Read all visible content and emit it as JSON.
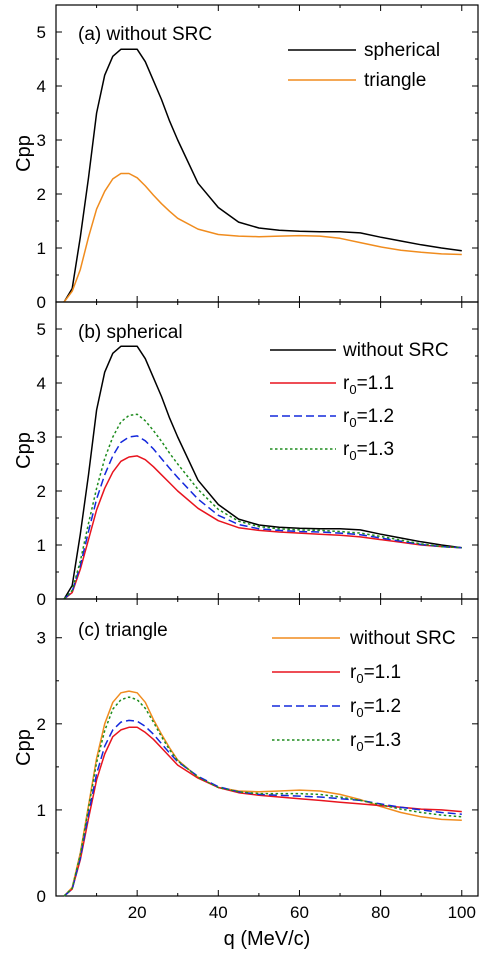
{
  "chart_data": [
    {
      "type": "line",
      "title": "(a) without SRC",
      "ylabel": "Cpp",
      "xlabel": "",
      "xlim": [
        0,
        104
      ],
      "ylim": [
        0,
        5.5
      ],
      "xticks": [
        20,
        40,
        60,
        80,
        100
      ],
      "yticks": [
        0,
        1,
        2,
        3,
        4,
        5
      ],
      "legend_position": "top-right",
      "series": [
        {
          "name": "spherical",
          "color": "#000000",
          "dash": "solid",
          "x": [
            2,
            4,
            6,
            8,
            10,
            12,
            14,
            16,
            18,
            20,
            22,
            24,
            26,
            28,
            30,
            35,
            40,
            45,
            50,
            55,
            60,
            65,
            70,
            75,
            80,
            85,
            90,
            95,
            100
          ],
          "y": [
            0,
            0.25,
            1.2,
            2.3,
            3.5,
            4.2,
            4.55,
            4.68,
            4.68,
            4.68,
            4.45,
            4.1,
            3.75,
            3.35,
            3.0,
            2.2,
            1.75,
            1.48,
            1.37,
            1.33,
            1.31,
            1.3,
            1.3,
            1.28,
            1.2,
            1.13,
            1.06,
            1.0,
            0.95
          ]
        },
        {
          "name": "triangle",
          "color": "#f08c1e",
          "dash": "solid",
          "x": [
            2,
            4,
            6,
            8,
            10,
            12,
            14,
            16,
            18,
            20,
            22,
            24,
            26,
            28,
            30,
            35,
            40,
            45,
            50,
            55,
            60,
            65,
            70,
            75,
            80,
            85,
            90,
            95,
            100
          ],
          "y": [
            0,
            0.2,
            0.6,
            1.2,
            1.72,
            2.05,
            2.28,
            2.38,
            2.38,
            2.3,
            2.15,
            1.98,
            1.82,
            1.68,
            1.55,
            1.35,
            1.25,
            1.22,
            1.21,
            1.22,
            1.23,
            1.22,
            1.18,
            1.1,
            1.02,
            0.96,
            0.92,
            0.89,
            0.88
          ]
        }
      ]
    },
    {
      "type": "line",
      "title": "(b) spherical",
      "ylabel": "Cpp",
      "xlabel": "",
      "xlim": [
        0,
        104
      ],
      "ylim": [
        0,
        5.5
      ],
      "xticks": [
        20,
        40,
        60,
        80,
        100
      ],
      "yticks": [
        0,
        1,
        2,
        3,
        4,
        5
      ],
      "legend_position": "top-right",
      "series": [
        {
          "name": "without SRC",
          "color": "#000000",
          "dash": "solid",
          "x": [
            2,
            4,
            6,
            8,
            10,
            12,
            14,
            16,
            18,
            20,
            22,
            24,
            26,
            28,
            30,
            35,
            40,
            45,
            50,
            55,
            60,
            65,
            70,
            75,
            80,
            85,
            90,
            95,
            100
          ],
          "y": [
            0,
            0.25,
            1.2,
            2.3,
            3.5,
            4.2,
            4.55,
            4.68,
            4.68,
            4.68,
            4.45,
            4.1,
            3.75,
            3.35,
            3.0,
            2.2,
            1.75,
            1.48,
            1.37,
            1.33,
            1.31,
            1.3,
            1.3,
            1.28,
            1.2,
            1.13,
            1.06,
            1.0,
            0.95
          ]
        },
        {
          "name": "r0=1.1",
          "label_main": "r",
          "label_sub": "0",
          "label_rest": "=1.1",
          "color": "#e8141e",
          "dash": "solid",
          "x": [
            2,
            4,
            6,
            8,
            10,
            12,
            14,
            16,
            18,
            20,
            22,
            24,
            26,
            28,
            30,
            35,
            40,
            45,
            50,
            55,
            60,
            65,
            70,
            75,
            80,
            85,
            90,
            95,
            100
          ],
          "y": [
            0,
            0.12,
            0.55,
            1.1,
            1.65,
            2.05,
            2.35,
            2.55,
            2.63,
            2.65,
            2.58,
            2.45,
            2.3,
            2.15,
            2.0,
            1.68,
            1.45,
            1.32,
            1.27,
            1.24,
            1.22,
            1.2,
            1.18,
            1.15,
            1.1,
            1.05,
            1.0,
            0.97,
            0.95
          ]
        },
        {
          "name": "r0=1.2",
          "label_main": "r",
          "label_sub": "0",
          "label_rest": "=1.2",
          "color": "#1428dc",
          "dash": "dashed",
          "x": [
            2,
            4,
            6,
            8,
            10,
            12,
            14,
            16,
            18,
            20,
            22,
            24,
            26,
            28,
            30,
            35,
            40,
            45,
            50,
            55,
            60,
            65,
            70,
            75,
            80,
            85,
            90,
            95,
            100
          ],
          "y": [
            0,
            0.14,
            0.62,
            1.25,
            1.85,
            2.3,
            2.65,
            2.9,
            3.0,
            3.02,
            2.93,
            2.78,
            2.6,
            2.42,
            2.25,
            1.85,
            1.55,
            1.38,
            1.3,
            1.27,
            1.25,
            1.24,
            1.22,
            1.19,
            1.13,
            1.07,
            1.01,
            0.97,
            0.95
          ]
        },
        {
          "name": "r0=1.3",
          "label_main": "r",
          "label_sub": "0",
          "label_rest": "=1.3",
          "color": "#1e8c1e",
          "dash": "dotted",
          "x": [
            2,
            4,
            6,
            8,
            10,
            12,
            14,
            16,
            18,
            20,
            22,
            24,
            26,
            28,
            30,
            35,
            40,
            45,
            50,
            55,
            60,
            65,
            70,
            75,
            80,
            85,
            90,
            95,
            100
          ],
          "y": [
            0,
            0.16,
            0.7,
            1.4,
            2.05,
            2.6,
            3.0,
            3.28,
            3.4,
            3.42,
            3.3,
            3.12,
            2.92,
            2.7,
            2.5,
            2.03,
            1.66,
            1.44,
            1.34,
            1.3,
            1.28,
            1.27,
            1.25,
            1.22,
            1.16,
            1.09,
            1.02,
            0.97,
            0.95
          ]
        }
      ]
    },
    {
      "type": "line",
      "title": "(c) triangle",
      "ylabel": "Cpp",
      "xlabel": "q (MeV/c)",
      "xlim": [
        0,
        104
      ],
      "ylim": [
        0,
        3.45
      ],
      "xticks": [
        20,
        40,
        60,
        80,
        100
      ],
      "yticks": [
        0,
        1,
        2,
        3
      ],
      "legend_position": "top-right",
      "series": [
        {
          "name": "without SRC",
          "color": "#f08c1e",
          "dash": "solid",
          "x": [
            2,
            4,
            6,
            8,
            10,
            12,
            14,
            16,
            18,
            20,
            22,
            24,
            26,
            28,
            30,
            35,
            40,
            45,
            50,
            55,
            60,
            65,
            70,
            75,
            80,
            85,
            90,
            95,
            100
          ],
          "y": [
            0,
            0.1,
            0.5,
            1.05,
            1.6,
            2.0,
            2.25,
            2.36,
            2.38,
            2.36,
            2.25,
            2.05,
            1.88,
            1.72,
            1.58,
            1.38,
            1.26,
            1.22,
            1.21,
            1.22,
            1.23,
            1.22,
            1.18,
            1.12,
            1.04,
            0.97,
            0.92,
            0.89,
            0.88
          ]
        },
        {
          "name": "r0=1.1",
          "label_main": "r",
          "label_sub": "0",
          "label_rest": "=1.1",
          "color": "#e8141e",
          "dash": "solid",
          "x": [
            2,
            4,
            6,
            8,
            10,
            12,
            14,
            16,
            18,
            20,
            22,
            24,
            26,
            28,
            30,
            35,
            40,
            45,
            50,
            55,
            60,
            65,
            70,
            75,
            80,
            85,
            90,
            95,
            100
          ],
          "y": [
            0,
            0.08,
            0.42,
            0.9,
            1.35,
            1.65,
            1.85,
            1.93,
            1.96,
            1.96,
            1.9,
            1.82,
            1.72,
            1.62,
            1.52,
            1.37,
            1.26,
            1.2,
            1.17,
            1.15,
            1.13,
            1.11,
            1.09,
            1.07,
            1.05,
            1.03,
            1.01,
            1.0,
            0.98
          ]
        },
        {
          "name": "r0=1.2",
          "label_main": "r",
          "label_sub": "0",
          "label_rest": "=1.2",
          "color": "#1428dc",
          "dash": "dashed",
          "x": [
            2,
            4,
            6,
            8,
            10,
            12,
            14,
            16,
            18,
            20,
            22,
            24,
            26,
            28,
            30,
            35,
            40,
            45,
            50,
            55,
            60,
            65,
            70,
            75,
            80,
            85,
            90,
            95,
            100
          ],
          "y": [
            0,
            0.08,
            0.44,
            0.95,
            1.42,
            1.74,
            1.93,
            2.02,
            2.04,
            2.03,
            1.97,
            1.88,
            1.77,
            1.66,
            1.56,
            1.39,
            1.27,
            1.21,
            1.18,
            1.17,
            1.16,
            1.15,
            1.13,
            1.11,
            1.07,
            1.03,
            1.0,
            0.97,
            0.95
          ]
        },
        {
          "name": "r0=1.3",
          "label_main": "r",
          "label_sub": "0",
          "label_rest": "=1.3",
          "color": "#1e8c1e",
          "dash": "dotted",
          "x": [
            2,
            4,
            6,
            8,
            10,
            12,
            14,
            16,
            18,
            20,
            22,
            24,
            26,
            28,
            30,
            35,
            40,
            45,
            50,
            55,
            60,
            65,
            70,
            75,
            80,
            85,
            90,
            95,
            100
          ],
          "y": [
            0,
            0.09,
            0.48,
            1.02,
            1.55,
            1.92,
            2.17,
            2.28,
            2.31,
            2.28,
            2.18,
            2.02,
            1.85,
            1.7,
            1.57,
            1.38,
            1.26,
            1.21,
            1.19,
            1.19,
            1.19,
            1.18,
            1.15,
            1.11,
            1.06,
            1.01,
            0.97,
            0.94,
            0.92
          ]
        }
      ]
    }
  ]
}
